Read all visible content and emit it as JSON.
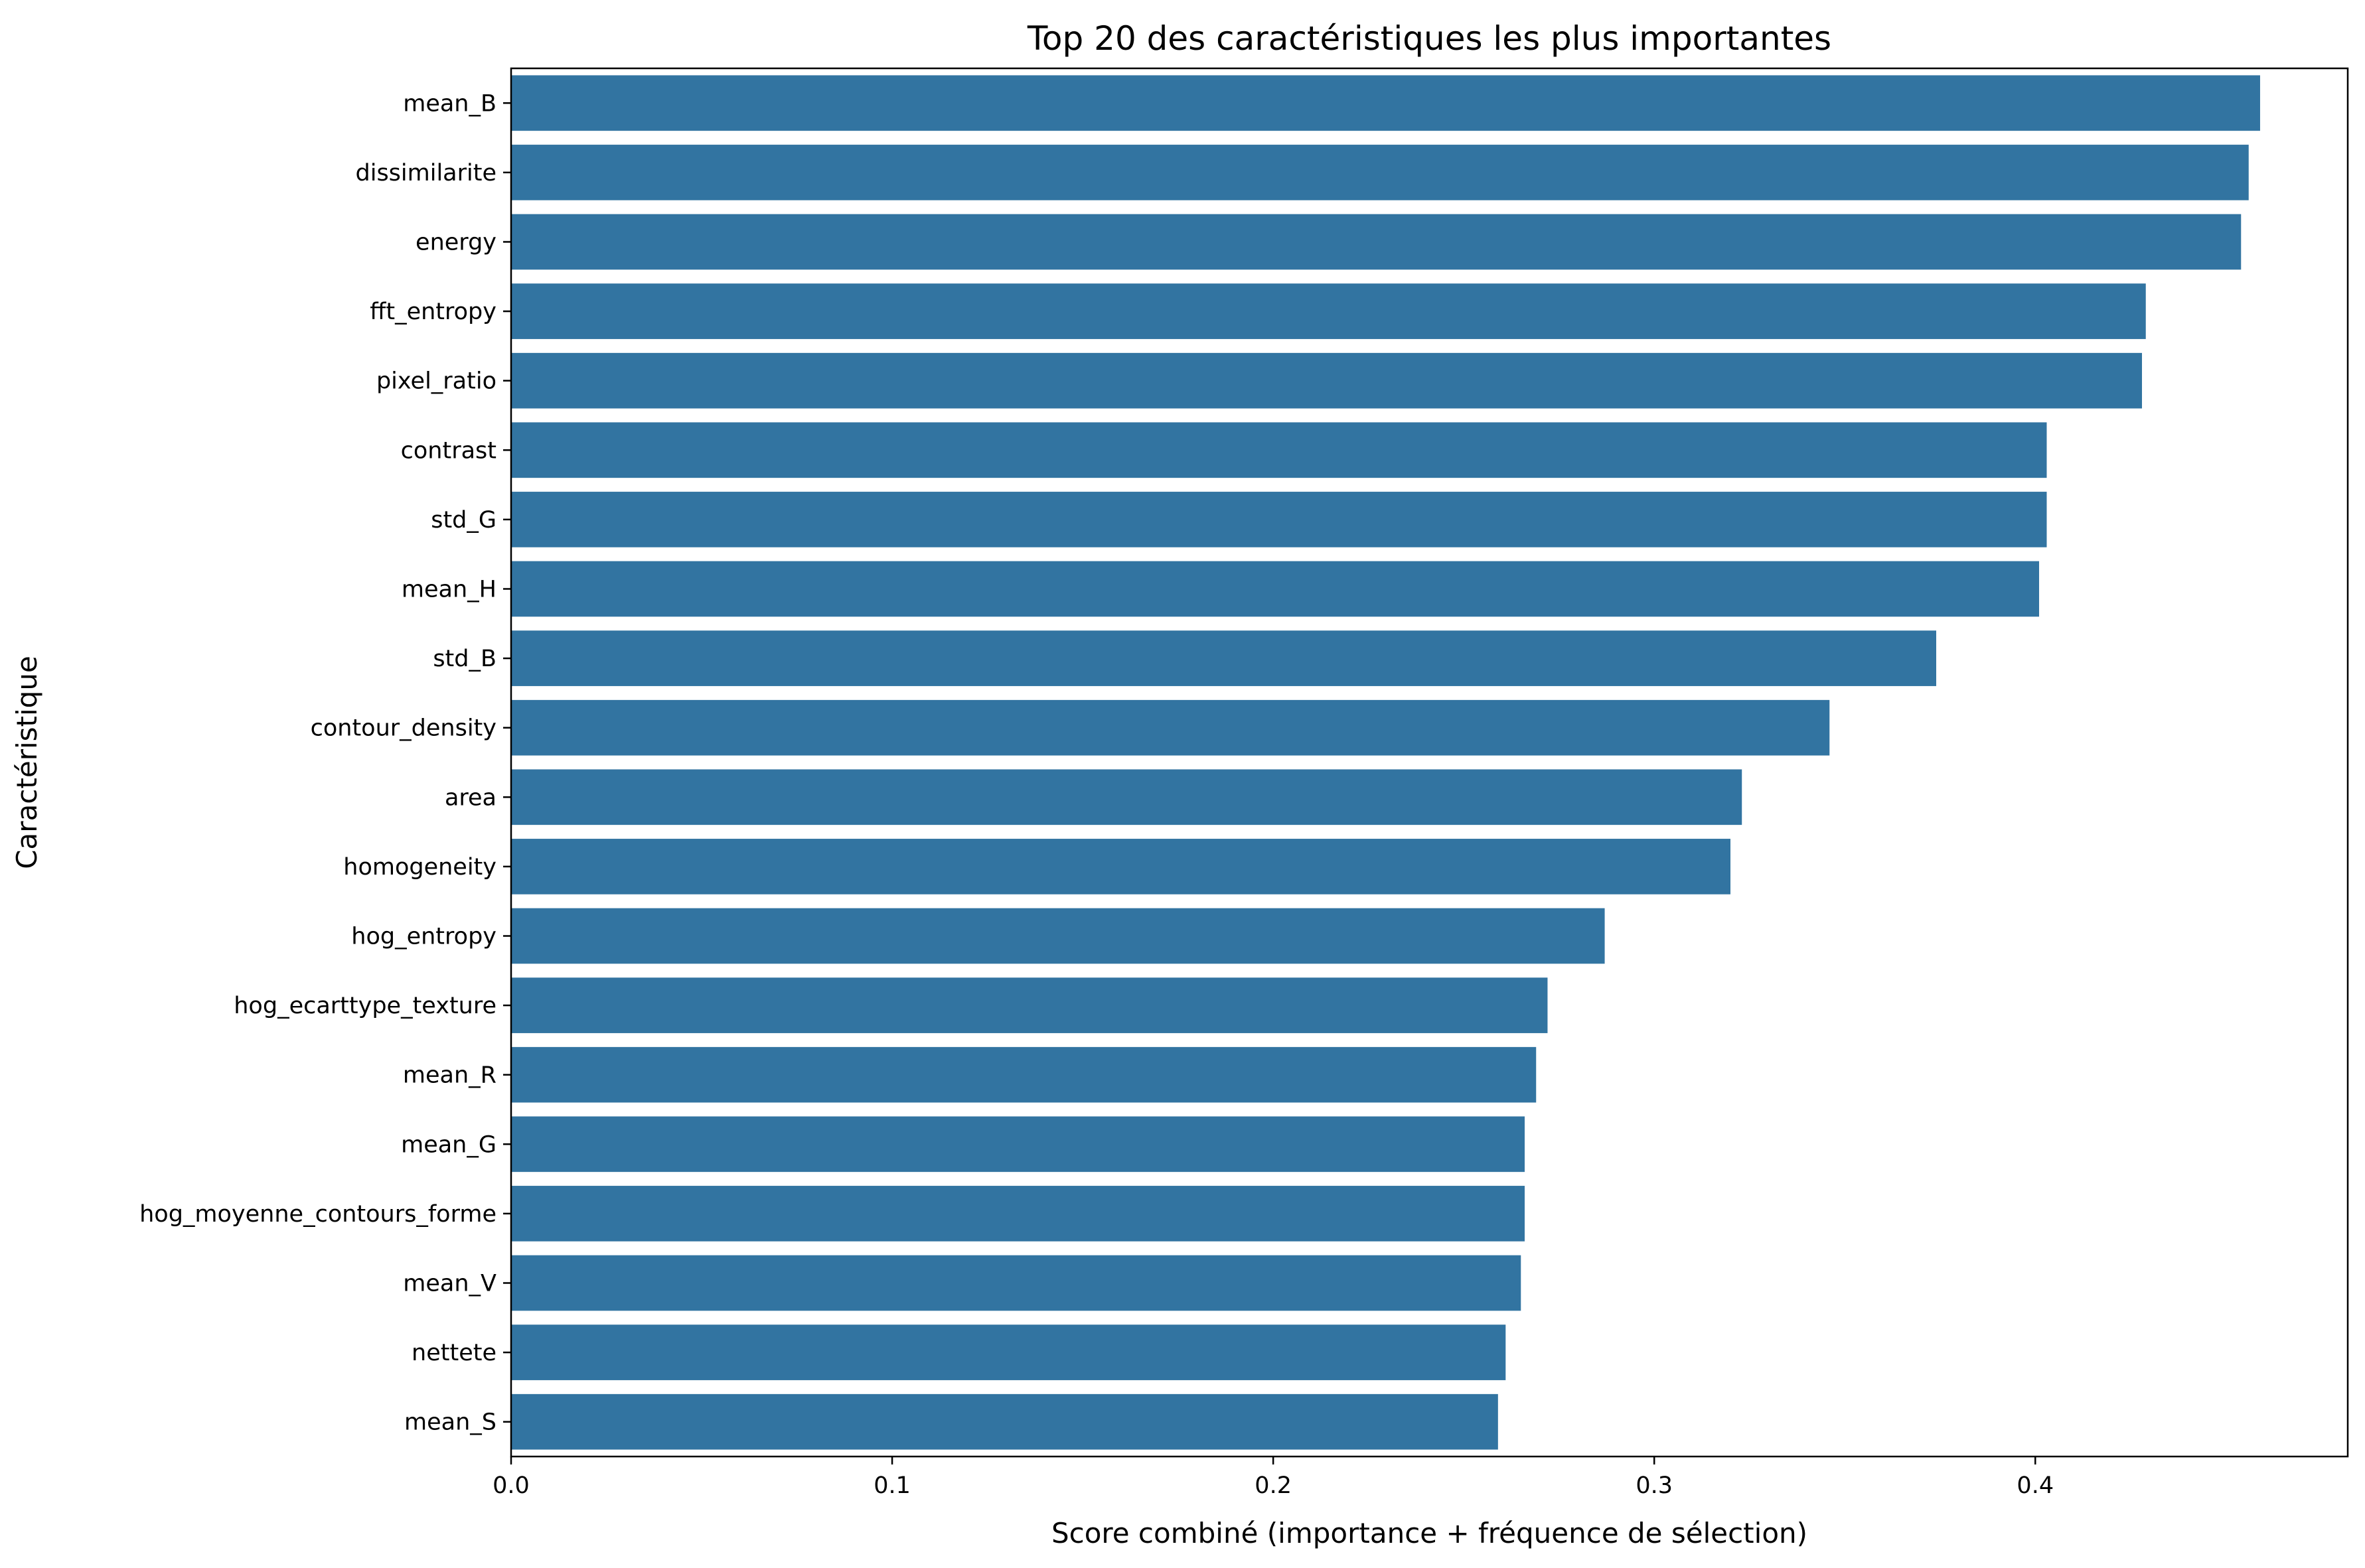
{
  "chart_data": {
    "type": "bar",
    "orientation": "horizontal",
    "title": "Top 20 des caractéristiques les plus importantes",
    "xlabel": "Score combiné (importance + fréquence de sélection)",
    "ylabel": "Caractéristique",
    "xlim": [
      0,
      0.482
    ],
    "xticks": [
      0.0,
      0.1,
      0.2,
      0.3,
      0.4
    ],
    "xtick_labels": [
      "0.0",
      "0.1",
      "0.2",
      "0.3",
      "0.4"
    ],
    "grid": false,
    "bar_color": "#3274a1",
    "categories": [
      "mean_B",
      "dissimilarite",
      "energy",
      "fft_entropy",
      "pixel_ratio",
      "contrast",
      "std_G",
      "mean_H",
      "std_B",
      "contour_density",
      "area",
      "homogeneity",
      "hog_entropy",
      "hog_ecarttype_texture",
      "mean_R",
      "mean_G",
      "hog_moyenne_contours_forme",
      "mean_V",
      "nettete",
      "mean_S"
    ],
    "values": [
      0.459,
      0.456,
      0.454,
      0.429,
      0.428,
      0.403,
      0.403,
      0.401,
      0.374,
      0.346,
      0.323,
      0.32,
      0.287,
      0.272,
      0.269,
      0.266,
      0.266,
      0.265,
      0.261,
      0.259
    ]
  }
}
